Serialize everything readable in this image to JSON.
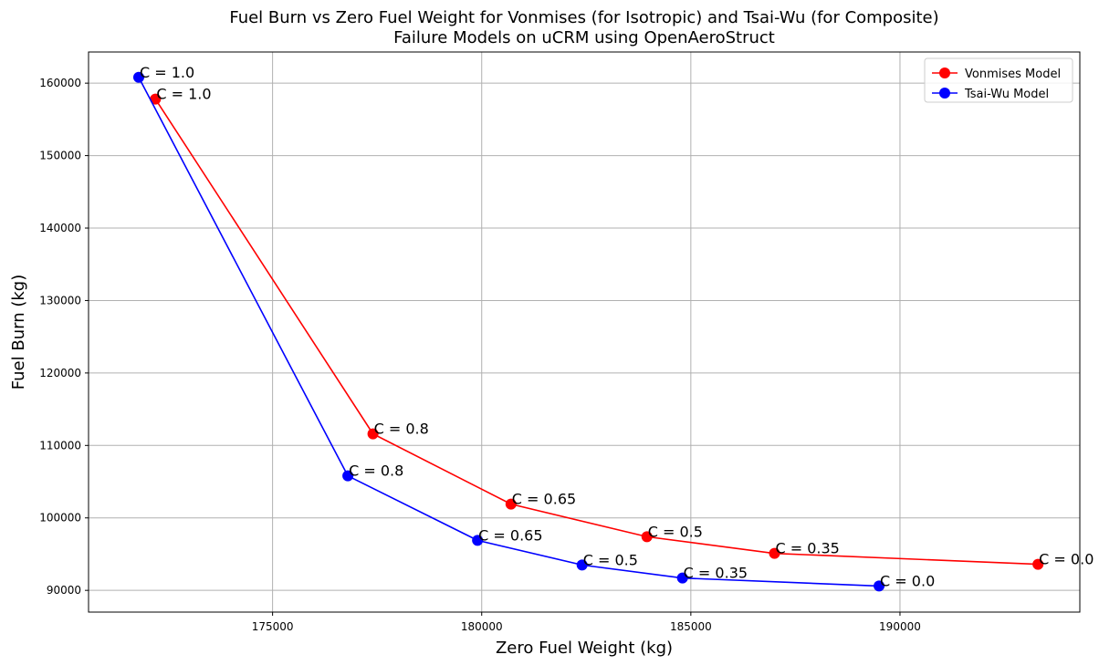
{
  "chart_data": {
    "type": "line",
    "title_line1": "Fuel Burn vs Zero Fuel Weight for Vonmises (for Isotropic) and Tsai-Wu (for Composite)",
    "title_line2": "Failure Models on uCRM using OpenAeroStruct",
    "xlabel": "Zero Fuel Weight (kg)",
    "ylabel": "Fuel Burn (kg)",
    "xlim": [
      170600,
      194300
    ],
    "ylim": [
      87000,
      164300
    ],
    "xticks": [
      175000,
      180000,
      185000,
      190000
    ],
    "yticks": [
      90000,
      100000,
      110000,
      120000,
      130000,
      140000,
      150000,
      160000
    ],
    "grid": true,
    "legend_position": "top-right",
    "series": [
      {
        "name": "Vonmises Model",
        "color": "#ff0000",
        "points": [
          {
            "x": 172200,
            "y": 157800,
            "label": "C = 1.0"
          },
          {
            "x": 177400,
            "y": 111600,
            "label": "C = 0.8"
          },
          {
            "x": 180700,
            "y": 101900,
            "label": "C = 0.65"
          },
          {
            "x": 183950,
            "y": 97400,
            "label": "C = 0.5"
          },
          {
            "x": 187000,
            "y": 95100,
            "label": "C = 0.35"
          },
          {
            "x": 193300,
            "y": 93600,
            "label": "C = 0.0"
          }
        ]
      },
      {
        "name": "Tsai-Wu Model",
        "color": "#0000ff",
        "points": [
          {
            "x": 171800,
            "y": 160800,
            "label": "C = 1.0"
          },
          {
            "x": 176800,
            "y": 105800,
            "label": "C = 0.8"
          },
          {
            "x": 179900,
            "y": 96900,
            "label": "C = 0.65"
          },
          {
            "x": 182400,
            "y": 93500,
            "label": "C = 0.5"
          },
          {
            "x": 184800,
            "y": 91700,
            "label": "C = 0.35"
          },
          {
            "x": 189500,
            "y": 90600,
            "label": "C = 0.0"
          }
        ]
      }
    ]
  }
}
